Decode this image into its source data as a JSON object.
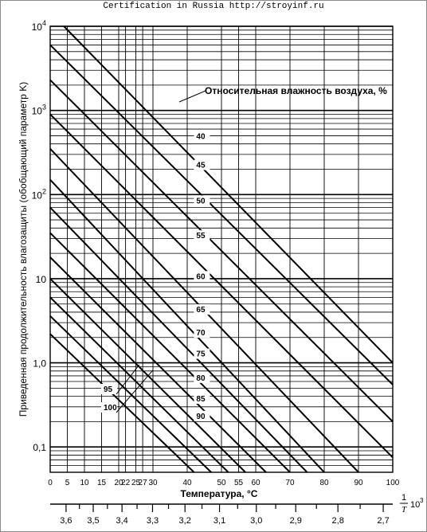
{
  "header": {
    "text": "Certification in Russia http://stroyinf.ru"
  },
  "chart_data": {
    "type": "line",
    "title": "",
    "ylabel": "Приведенная продолжительность влагозащиты (обобщающий параметр K)",
    "xlabel": "Температура, °C",
    "x2label_frac": "1",
    "x2label_den": "T",
    "x2label_pow": "10",
    "x2label_exp": "3",
    "legend_title": "Относительная влажность воздуха, %",
    "yscale": "log",
    "ylim": [
      0.05,
      10000
    ],
    "xlim": [
      0,
      100
    ],
    "grid": true,
    "y_tick_labels": [
      {
        "value": 10000,
        "label": "10",
        "sup": "4"
      },
      {
        "value": 1000,
        "label": "10",
        "sup": "3"
      },
      {
        "value": 100,
        "label": "10",
        "sup": "2"
      },
      {
        "value": 10,
        "label": "10",
        "sup": ""
      },
      {
        "value": 1,
        "label": "1,0",
        "sup": ""
      },
      {
        "value": 0.1,
        "label": "0,1",
        "sup": ""
      }
    ],
    "x_tick_labels": [
      {
        "value": 0,
        "label": "0"
      },
      {
        "value": 5,
        "label": "5"
      },
      {
        "value": 10,
        "label": "10"
      },
      {
        "value": 15,
        "label": "15"
      },
      {
        "value": 20,
        "label": "20"
      },
      {
        "value": 22,
        "label": "22"
      },
      {
        "value": 25,
        "label": "25"
      },
      {
        "value": 27,
        "label": "27"
      },
      {
        "value": 30,
        "label": "30"
      },
      {
        "value": 40,
        "label": "40"
      },
      {
        "value": 50,
        "label": "50"
      },
      {
        "value": 55,
        "label": "55"
      },
      {
        "value": 60,
        "label": "60"
      },
      {
        "value": 70,
        "label": "70"
      },
      {
        "value": 80,
        "label": "80"
      },
      {
        "value": 90,
        "label": "90"
      },
      {
        "value": 100,
        "label": "100"
      }
    ],
    "x2_tick_labels": [
      {
        "value": 3.6,
        "label": "3,6"
      },
      {
        "value": 3.5,
        "label": "3,5"
      },
      {
        "value": 3.4,
        "label": "3,4"
      },
      {
        "value": 3.3,
        "label": "3,3"
      },
      {
        "value": 3.2,
        "label": "3,2"
      },
      {
        "value": 3.1,
        "label": "3,1"
      },
      {
        "value": 3.0,
        "label": "3,0"
      },
      {
        "value": 2.9,
        "label": "2,9"
      },
      {
        "value": 2.8,
        "label": "2,8"
      },
      {
        "value": 2.7,
        "label": "2,7"
      }
    ],
    "series": [
      {
        "name": "40",
        "x": [
          4,
          100
        ],
        "y": [
          10000,
          1
        ]
      },
      {
        "name": "45",
        "x": [
          0,
          100
        ],
        "y": [
          6000,
          0.55
        ]
      },
      {
        "name": "50",
        "x": [
          0,
          100
        ],
        "y": [
          2300,
          0.2
        ]
      },
      {
        "name": "55",
        "x": [
          0,
          100
        ],
        "y": [
          900,
          0.075
        ]
      },
      {
        "name": "60",
        "x": [
          0,
          90
        ],
        "y": [
          350,
          0.05
        ]
      },
      {
        "name": "65",
        "x": [
          0,
          80
        ],
        "y": [
          150,
          0.05
        ]
      },
      {
        "name": "70",
        "x": [
          0,
          75
        ],
        "y": [
          70,
          0.05
        ]
      },
      {
        "name": "75",
        "x": [
          0,
          70
        ],
        "y": [
          35,
          0.05
        ]
      },
      {
        "name": "80",
        "x": [
          0,
          63
        ],
        "y": [
          18,
          0.05
        ]
      },
      {
        "name": "85",
        "x": [
          0,
          57
        ],
        "y": [
          10,
          0.05
        ]
      },
      {
        "name": "90",
        "x": [
          0,
          52
        ],
        "y": [
          6,
          0.05
        ]
      },
      {
        "name": "95",
        "x": [
          0,
          47
        ],
        "y": [
          3.6,
          0.05
        ]
      },
      {
        "name": "100",
        "x": [
          0,
          42
        ],
        "y": [
          2.2,
          0.05
        ]
      }
    ],
    "series_label_x": 38
  }
}
